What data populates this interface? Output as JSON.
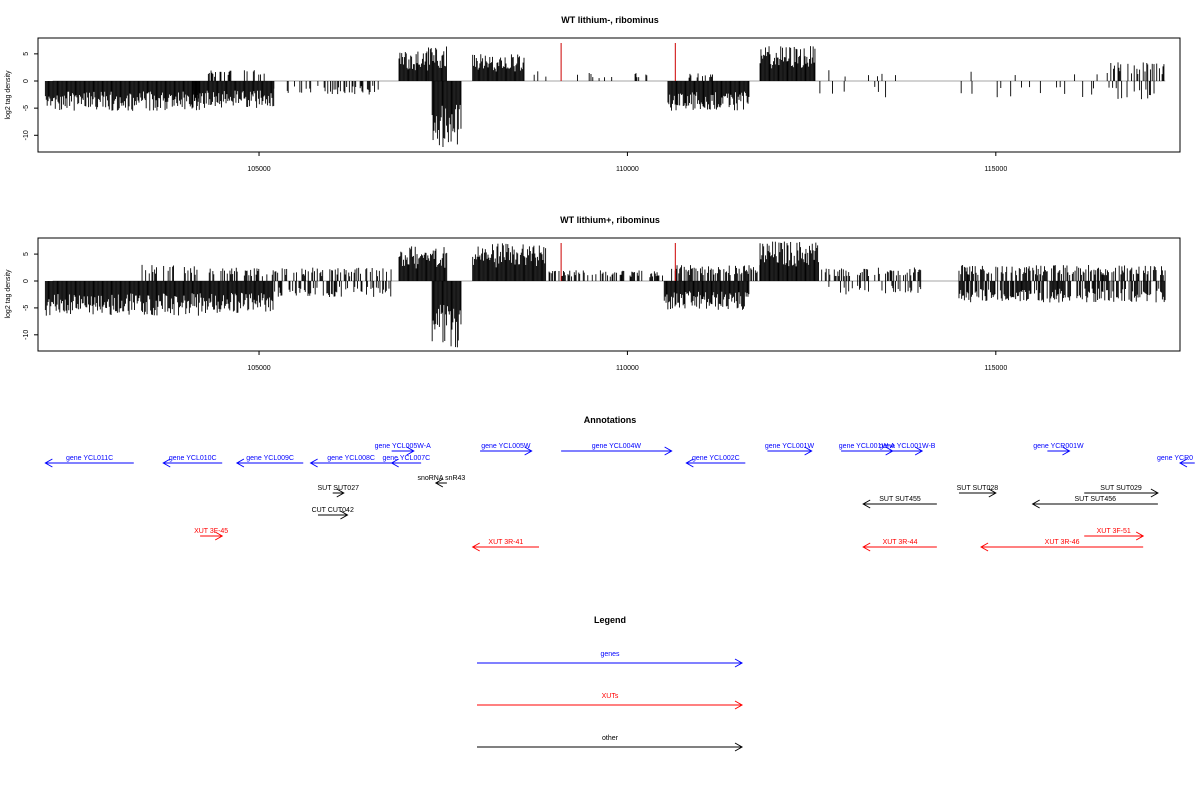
{
  "panels": [
    {
      "title": "WT lithium-, ribominus",
      "ylabel": "log2 tag density"
    },
    {
      "title": "WT lithium+, ribominus",
      "ylabel": "log2 tag density"
    }
  ],
  "annotations_title": "Annotations",
  "legend": {
    "title": "Legend",
    "items": [
      {
        "label": "genes",
        "color": "#0000ff"
      },
      {
        "label": "XUTs",
        "color": "#ff0000"
      },
      {
        "label": "other",
        "color": "#000000"
      }
    ]
  },
  "colors": {
    "gene": "#0000ff",
    "xut": "#ff0000",
    "other": "#000000",
    "marker": "#cc0000"
  },
  "chart_data": [
    {
      "type": "bar",
      "title": "WT lithium-, ribominus",
      "xlabel": "",
      "ylabel": "log2 tag density",
      "xlim": [
        102000,
        117500
      ],
      "ylim": [
        -13,
        8
      ],
      "yticks": [
        5,
        0,
        -5,
        -10
      ],
      "xticks": [
        105000,
        110000,
        115000
      ],
      "vertical_markers": [
        109100,
        110650
      ],
      "regions": [
        {
          "start": 102100,
          "end": 104200,
          "sign": -1,
          "amp": 5.5,
          "density": 1.0
        },
        {
          "start": 104100,
          "end": 105200,
          "sign": -1,
          "amp": 5.0,
          "density": 1.0
        },
        {
          "start": 104300,
          "end": 105100,
          "sign": 1,
          "amp": 2.0,
          "density": 0.3
        },
        {
          "start": 105200,
          "end": 106900,
          "sign": -1,
          "amp": 2.5,
          "density": 0.25
        },
        {
          "start": 106900,
          "end": 107300,
          "sign": 1,
          "amp": 5.5,
          "density": 1.0
        },
        {
          "start": 107300,
          "end": 107550,
          "sign": 1,
          "amp": 6.5,
          "density": 1.0
        },
        {
          "start": 107350,
          "end": 107750,
          "sign": -1,
          "amp": 12.5,
          "density": 1.0
        },
        {
          "start": 107900,
          "end": 108600,
          "sign": 1,
          "amp": 5.0,
          "density": 1.0
        },
        {
          "start": 108600,
          "end": 109000,
          "sign": 1,
          "amp": 2.0,
          "density": 0.2
        },
        {
          "start": 109200,
          "end": 110300,
          "sign": 1,
          "amp": 1.5,
          "density": 0.08
        },
        {
          "start": 110550,
          "end": 111650,
          "sign": -1,
          "amp": 5.5,
          "density": 1.0
        },
        {
          "start": 110800,
          "end": 111300,
          "sign": 1,
          "amp": 1.5,
          "density": 0.2
        },
        {
          "start": 111800,
          "end": 112550,
          "sign": 1,
          "amp": 6.5,
          "density": 1.0
        },
        {
          "start": 112600,
          "end": 116500,
          "sign": -1,
          "amp": 3.0,
          "density": 0.05
        },
        {
          "start": 112600,
          "end": 116500,
          "sign": 1,
          "amp": 2.0,
          "density": 0.04
        },
        {
          "start": 116500,
          "end": 117300,
          "sign": 1,
          "amp": 3.5,
          "density": 0.4
        },
        {
          "start": 116500,
          "end": 117300,
          "sign": -1,
          "amp": 3.5,
          "density": 0.3
        }
      ]
    },
    {
      "type": "bar",
      "title": "WT lithium+, ribominus",
      "xlabel": "",
      "ylabel": "log2 tag density",
      "xlim": [
        102000,
        117500
      ],
      "ylim": [
        -13,
        8
      ],
      "yticks": [
        5,
        0,
        -5,
        -10
      ],
      "xticks": [
        105000,
        110000,
        115000
      ],
      "vertical_markers": [
        109100,
        110650
      ],
      "regions": [
        {
          "start": 102100,
          "end": 104200,
          "sign": -1,
          "amp": 6.5,
          "density": 1.0
        },
        {
          "start": 103400,
          "end": 104200,
          "sign": 1,
          "amp": 3.0,
          "density": 0.3
        },
        {
          "start": 104200,
          "end": 105200,
          "sign": -1,
          "amp": 6.0,
          "density": 1.0
        },
        {
          "start": 104300,
          "end": 106800,
          "sign": 1,
          "amp": 2.5,
          "density": 0.35
        },
        {
          "start": 105200,
          "end": 106800,
          "sign": -1,
          "amp": 3.0,
          "density": 0.4
        },
        {
          "start": 106900,
          "end": 107550,
          "sign": 1,
          "amp": 6.5,
          "density": 1.0
        },
        {
          "start": 107350,
          "end": 107750,
          "sign": -1,
          "amp": 12.5,
          "density": 1.0
        },
        {
          "start": 107900,
          "end": 108900,
          "sign": 1,
          "amp": 7.0,
          "density": 1.0
        },
        {
          "start": 108900,
          "end": 110500,
          "sign": 1,
          "amp": 2.0,
          "density": 0.5
        },
        {
          "start": 110500,
          "end": 111650,
          "sign": -1,
          "amp": 5.5,
          "density": 1.0
        },
        {
          "start": 110600,
          "end": 111800,
          "sign": 1,
          "amp": 3.0,
          "density": 0.6
        },
        {
          "start": 111800,
          "end": 112600,
          "sign": 1,
          "amp": 7.5,
          "density": 1.0
        },
        {
          "start": 112600,
          "end": 114000,
          "sign": 1,
          "amp": 2.5,
          "density": 0.4
        },
        {
          "start": 112600,
          "end": 114000,
          "sign": -1,
          "amp": 2.5,
          "density": 0.3
        },
        {
          "start": 114500,
          "end": 117300,
          "sign": 1,
          "amp": 3.0,
          "density": 0.6
        },
        {
          "start": 114500,
          "end": 117300,
          "sign": -1,
          "amp": 4.0,
          "density": 0.7
        }
      ]
    }
  ],
  "features": [
    {
      "label": "gene YCL011C",
      "type": "gene",
      "start": 102100,
      "end": 103300,
      "dir": "left"
    },
    {
      "label": "gene YCL010C",
      "type": "gene",
      "start": 103700,
      "end": 104500,
      "dir": "left"
    },
    {
      "label": "gene YCL009C",
      "type": "gene",
      "start": 104700,
      "end": 105600,
      "dir": "left"
    },
    {
      "label": "gene YCL008C",
      "type": "gene",
      "start": 105700,
      "end": 106800,
      "dir": "left"
    },
    {
      "label": "gene YCL005W-A",
      "type": "gene",
      "start": 106800,
      "end": 107100,
      "dir": "right"
    },
    {
      "label": "gene YCL007C",
      "type": "gene",
      "start": 106800,
      "end": 107200,
      "dir": "left"
    },
    {
      "label": "gene YCL005W",
      "type": "gene",
      "start": 108000,
      "end": 108700,
      "dir": "right"
    },
    {
      "label": "gene YCL004W",
      "type": "gene",
      "start": 109100,
      "end": 110600,
      "dir": "right"
    },
    {
      "label": "gene YCL002C",
      "type": "gene",
      "start": 110800,
      "end": 111600,
      "dir": "left"
    },
    {
      "label": "gene YCL001W",
      "type": "gene",
      "start": 111900,
      "end": 112500,
      "dir": "right"
    },
    {
      "label": "gene YCL001W-A",
      "type": "gene",
      "start": 112900,
      "end": 113600,
      "dir": "right"
    },
    {
      "label": "gene YCL001W-B",
      "type": "gene",
      "start": 113600,
      "end": 114000,
      "dir": "right"
    },
    {
      "label": "gene YCR001W",
      "type": "gene",
      "start": 115700,
      "end": 116000,
      "dir": "right"
    },
    {
      "label": "gene YCR0",
      "type": "gene",
      "start": 117500,
      "end": 117700,
      "dir": "left"
    },
    {
      "label": "SUT SUT027",
      "type": "other",
      "start": 106000,
      "end": 106150,
      "dir": "right"
    },
    {
      "label": "snoRNA snR43",
      "type": "other",
      "start": 107400,
      "end": 107550,
      "dir": "left"
    },
    {
      "label": "CUT CUT042",
      "type": "other",
      "start": 105800,
      "end": 106200,
      "dir": "right"
    },
    {
      "label": "SUT SUT455",
      "type": "other",
      "start": 113200,
      "end": 114200,
      "dir": "left"
    },
    {
      "label": "SUT SUT028",
      "type": "other",
      "start": 114500,
      "end": 115000,
      "dir": "right"
    },
    {
      "label": "SUT SUT029",
      "type": "other",
      "start": 116200,
      "end": 117200,
      "dir": "right"
    },
    {
      "label": "SUT SUT456",
      "type": "other",
      "start": 115500,
      "end": 117200,
      "dir": "left"
    },
    {
      "label": "XUT 3F-45",
      "type": "xut",
      "start": 104200,
      "end": 104500,
      "dir": "right"
    },
    {
      "label": "XUT 3R-41",
      "type": "xut",
      "start": 107900,
      "end": 108800,
      "dir": "left"
    },
    {
      "label": "XUT 3R-44",
      "type": "xut",
      "start": 113200,
      "end": 114200,
      "dir": "left"
    },
    {
      "label": "XUT 3F-51",
      "type": "xut",
      "start": 116200,
      "end": 117000,
      "dir": "right"
    },
    {
      "label": "XUT 3R-46",
      "type": "xut",
      "start": 114800,
      "end": 117000,
      "dir": "left"
    }
  ]
}
